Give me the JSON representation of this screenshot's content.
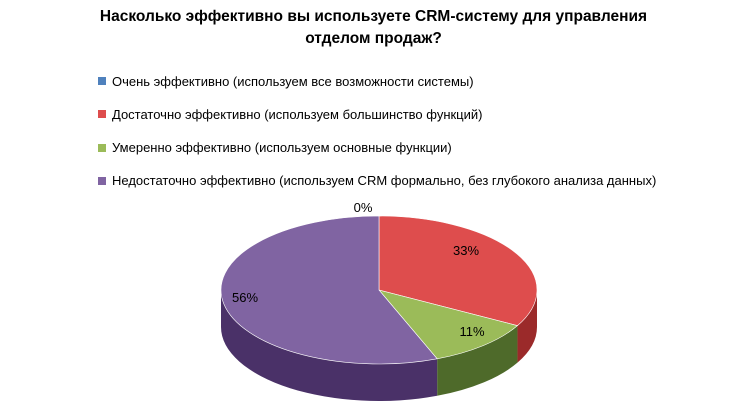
{
  "chart_data": {
    "type": "pie",
    "title_lines": [
      "Насколько эффективно вы используете CRM-систему для управления",
      "отделом продаж?"
    ],
    "legend_position": "top-left",
    "categories": [
      "Очень эффективно (используем все возможности системы)",
      "Достаточно эффективно (используем большинство функций)",
      "Умеренно эффективно (используем основные функции)",
      "Недостаточно эффективно (используем CRM формально, без глубокого анализа данных)"
    ],
    "values": [
      0,
      33,
      11,
      56
    ],
    "data_labels": [
      "0%",
      "33%",
      "11%",
      "56%"
    ],
    "colors": [
      "#4F81BD",
      "#DE4D4D",
      "#9BBB59",
      "#8064A2"
    ],
    "side_colors": [
      "#2C5080",
      "#9B2A2A",
      "#4E6A2A",
      "#4A3168"
    ]
  }
}
